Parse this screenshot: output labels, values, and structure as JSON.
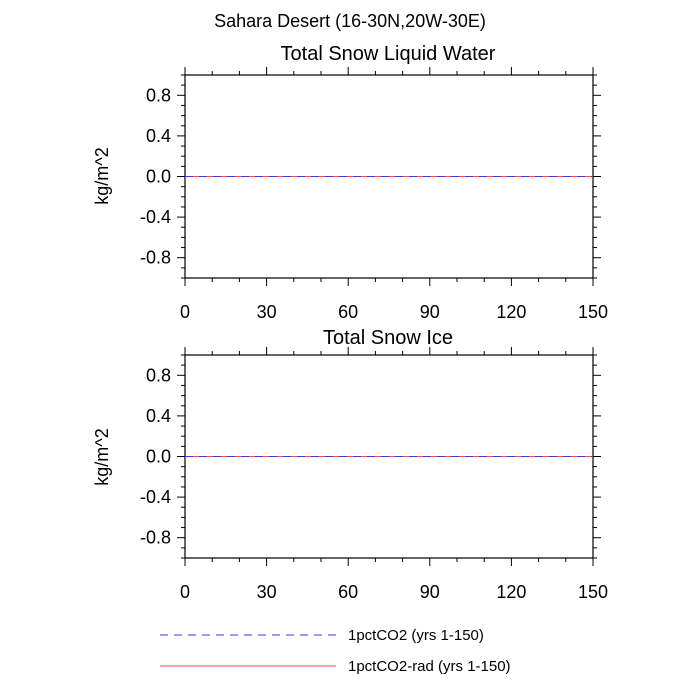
{
  "figure_title": "Sahara Desert (16-30N,20W-30E)",
  "chart_data": [
    {
      "type": "line",
      "title": "Total Snow Liquid Water",
      "xlabel": "",
      "ylabel": "kg/m^2",
      "xlim": [
        0,
        150
      ],
      "ylim": [
        -1.0,
        1.0
      ],
      "xticks": [
        0,
        30,
        60,
        90,
        120,
        150
      ],
      "yticks": [
        -0.8,
        -0.4,
        0.0,
        0.4,
        0.8
      ],
      "ytick_labels": [
        "-0.8",
        "-0.4",
        "0.0",
        "0.4",
        "0.8"
      ],
      "grid": false,
      "series": [
        {
          "name": "1pctCO2 (yrs 1-150)",
          "x": [
            0,
            150
          ],
          "values": [
            0.0,
            0.0
          ],
          "color": "#3a3adf",
          "style": "dashed"
        },
        {
          "name": "1pctCO2-rad (yrs 1-150)",
          "x": [
            0,
            150
          ],
          "values": [
            0.0,
            0.0
          ],
          "color": "#ff4a4a",
          "style": "solid"
        }
      ]
    },
    {
      "type": "line",
      "title": "Total Snow Ice",
      "xlabel": "",
      "ylabel": "kg/m^2",
      "xlim": [
        0,
        150
      ],
      "ylim": [
        -1.0,
        1.0
      ],
      "xticks": [
        0,
        30,
        60,
        90,
        120,
        150
      ],
      "yticks": [
        -0.8,
        -0.4,
        0.0,
        0.4,
        0.8
      ],
      "ytick_labels": [
        "-0.8",
        "-0.4",
        "0.0",
        "0.4",
        "0.8"
      ],
      "grid": false,
      "series": [
        {
          "name": "1pctCO2 (yrs 1-150)",
          "x": [
            0,
            150
          ],
          "values": [
            0.0,
            0.0
          ],
          "color": "#3a3adf",
          "style": "dashed"
        },
        {
          "name": "1pctCO2-rad (yrs 1-150)",
          "x": [
            0,
            150
          ],
          "values": [
            0.0,
            0.0
          ],
          "color": "#ff4a4a",
          "style": "solid"
        }
      ]
    }
  ],
  "legend": {
    "placement": "bottom",
    "entries": [
      {
        "label": "1pctCO2 (yrs 1-150)",
        "color": "#3a3adf",
        "style": "dashed"
      },
      {
        "label": "1pctCO2-rad (yrs 1-150)",
        "color": "#ff4a4a",
        "style": "solid"
      }
    ]
  }
}
